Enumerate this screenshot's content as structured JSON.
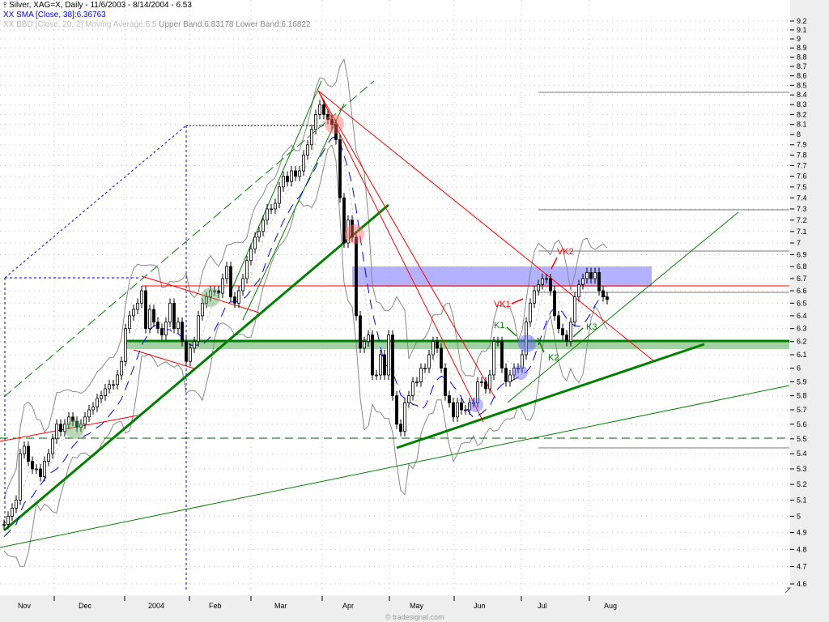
{
  "header": {
    "title": "Silver, XAG=X, Daily - 11/6/2003 - 8/14/2004 - 6.53",
    "sma_legend": "XX SMA [Close, 38]:6.36763",
    "bbd_legend_prefix": "XX BBD [Close, 20, 2] Moving Average:6.5",
    "bbd_legend_bands": "Upper Band:6.83178 Lower Band:6.16822"
  },
  "footer": {
    "watermark": "© tradesignal.com"
  },
  "colors": {
    "sma": "#0000ff",
    "bands": "#888888",
    "trend_up": "#008000",
    "trend_down": "#ff0000",
    "resistance_zone": "#aaaaff",
    "support_zone": "#99cc99"
  },
  "chart_data": {
    "type": "candlestick",
    "symbol": "Silver, XAG=X",
    "interval": "Daily",
    "y_scale": "log",
    "ylim": [
      4.6,
      9.2
    ],
    "y_ticks": [
      "9.2",
      "9.1",
      "9",
      "8.9",
      "8.8",
      "8.7",
      "8.6",
      "8.5",
      "8.4",
      "8.3",
      "8.2",
      "8.1",
      "8",
      "7.9",
      "7.8",
      "7.7",
      "7.6",
      "7.5",
      "7.4",
      "7.3",
      "7.2",
      "7.1",
      "7",
      "6.9",
      "6.8",
      "6.7",
      "6.6",
      "6.5",
      "6.4",
      "6.3",
      "6.2",
      "6.1",
      "6",
      "5.9",
      "5.8",
      "5.7",
      "5.6",
      "5.5",
      "5.4",
      "5.3",
      "5.2",
      "5.1",
      "5",
      "4.9",
      "4.8",
      "4.7",
      "4.6"
    ],
    "x_ticks": [
      "Nov",
      "Dec",
      "2004",
      "Feb",
      "Mar",
      "Apr",
      "May",
      "Jun",
      "Jul",
      "Aug"
    ],
    "grid": true,
    "indicators": [
      "SMA [Close, 38]",
      "BBD [Close, 20, 2]"
    ],
    "last_close": 6.53,
    "closes": [
      4.95,
      5.0,
      5.05,
      5.1,
      5.4,
      5.45,
      5.35,
      5.3,
      5.3,
      5.25,
      5.35,
      5.4,
      5.5,
      5.6,
      5.55,
      5.6,
      5.65,
      5.62,
      5.58,
      5.6,
      5.65,
      5.7,
      5.72,
      5.78,
      5.8,
      5.85,
      5.88,
      5.88,
      5.95,
      6.05,
      6.3,
      6.4,
      6.45,
      6.5,
      6.6,
      6.3,
      6.45,
      6.35,
      6.3,
      6.25,
      6.35,
      6.5,
      6.3,
      6.35,
      6.2,
      6.05,
      6.15,
      6.2,
      6.4,
      6.5,
      6.55,
      6.6,
      6.6,
      6.58,
      6.7,
      6.8,
      6.55,
      6.5,
      6.6,
      6.7,
      6.85,
      6.95,
      7.05,
      7.1,
      7.2,
      7.3,
      7.3,
      7.35,
      7.5,
      7.6,
      7.55,
      7.65,
      7.6,
      7.65,
      7.8,
      7.9,
      8.05,
      8.2,
      8.3,
      8.2,
      8.15,
      8.1,
      7.95,
      7.4,
      7.0,
      7.2,
      7.05,
      6.4,
      6.15,
      6.2,
      6.25,
      5.95,
      5.95,
      6.1,
      5.95,
      6.25,
      5.8,
      5.6,
      5.55,
      5.75,
      5.8,
      5.9,
      5.9,
      6.0,
      6.0,
      6.1,
      6.2,
      6.15,
      6.0,
      5.8,
      5.75,
      5.65,
      5.75,
      5.7,
      5.7,
      5.75,
      5.75,
      5.9,
      5.9,
      5.85,
      5.95,
      6.2,
      6.2,
      6.0,
      5.9,
      5.95,
      6.0,
      6.0,
      6.1,
      6.35,
      6.5,
      6.6,
      6.65,
      6.7,
      6.7,
      6.6,
      6.4,
      6.3,
      6.25,
      6.2,
      6.35,
      6.55,
      6.65,
      6.7,
      6.75,
      6.7,
      6.75,
      6.6,
      6.55,
      6.53
    ],
    "annotations": [
      "VK1",
      "VK2",
      "K1",
      "K2",
      "K3"
    ]
  }
}
